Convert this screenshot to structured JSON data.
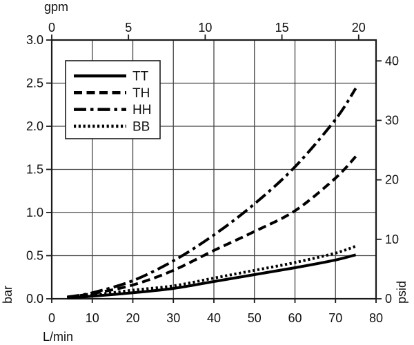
{
  "colors": {
    "background": "#ffffff",
    "line": "#000000",
    "grid": "#444444",
    "border": "#1a1a1a",
    "text": "#111111"
  },
  "chart_data": {
    "type": "line",
    "title": "",
    "x_bottom": {
      "label": "L/min",
      "range": [
        0,
        80
      ],
      "ticks": [
        0,
        10,
        20,
        30,
        40,
        50,
        60,
        70,
        80
      ]
    },
    "x_top": {
      "label": "gpm",
      "ticks": [
        0,
        5,
        10,
        15,
        20
      ],
      "lpm_per_gpm": 3.785411784
    },
    "y_left": {
      "label": "bar",
      "range": [
        0,
        3.0
      ],
      "ticks": [
        "0.0",
        "0.5",
        "1.0",
        "1.5",
        "2.0",
        "2.5",
        "3.0"
      ]
    },
    "y_right": {
      "label": "psid",
      "ticks": [
        0,
        10,
        20,
        30,
        40
      ],
      "psi_per_bar": 14.5038
    },
    "grid": {
      "x_step": 10,
      "y_step": 0.5,
      "grid_on": true
    },
    "legend": {
      "position": "top-left",
      "entries": [
        "TT",
        "TH",
        "HH",
        "BB"
      ]
    },
    "series": [
      {
        "name": "TT",
        "style": "solid",
        "x": [
          3.8,
          10,
          20,
          30,
          40,
          50,
          60,
          70,
          75
        ],
        "values": [
          0.01,
          0.03,
          0.07,
          0.12,
          0.2,
          0.28,
          0.36,
          0.45,
          0.51
        ]
      },
      {
        "name": "TH",
        "style": "dashed",
        "x": [
          3.8,
          10,
          20,
          30,
          40,
          50,
          60,
          70,
          75
        ],
        "values": [
          0.02,
          0.06,
          0.16,
          0.33,
          0.56,
          0.78,
          1.02,
          1.4,
          1.65
        ]
      },
      {
        "name": "HH",
        "style": "dashdot",
        "x": [
          3.8,
          10,
          20,
          30,
          40,
          50,
          60,
          70,
          75
        ],
        "values": [
          0.02,
          0.07,
          0.21,
          0.44,
          0.74,
          1.1,
          1.53,
          2.08,
          2.44
        ]
      },
      {
        "name": "BB",
        "style": "dotted",
        "x": [
          3.8,
          10,
          20,
          30,
          40,
          50,
          60,
          70,
          75
        ],
        "values": [
          0.01,
          0.04,
          0.1,
          0.15,
          0.24,
          0.33,
          0.42,
          0.53,
          0.61
        ]
      }
    ]
  }
}
